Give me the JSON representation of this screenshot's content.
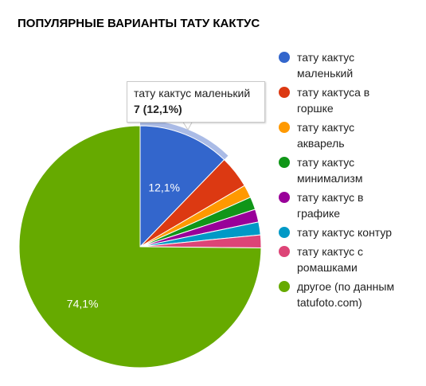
{
  "title": "ПОПУЛЯРНЫЕ ВАРИАНТЫ ТАТУ КАКТУС",
  "chart_data": {
    "type": "pie",
    "legend_position": "right",
    "slices": [
      {
        "label": "тату кактус маленький",
        "value": 7,
        "percent": 12.1,
        "color": "#3366cc",
        "label_text": "12,1%"
      },
      {
        "label": "тату кактуса в горшке",
        "percent": 4.3,
        "color": "#dc3912"
      },
      {
        "label": "тату кактус акварель",
        "percent": 1.7,
        "color": "#ff9900"
      },
      {
        "label": "тату кактус минимализм",
        "percent": 1.7,
        "color": "#109618"
      },
      {
        "label": "тату кактус в графике",
        "percent": 1.7,
        "color": "#990099"
      },
      {
        "label": "тату кактус контур",
        "percent": 1.7,
        "color": "#0099c6"
      },
      {
        "label": "тату кактус с ромашками",
        "percent": 1.7,
        "color": "#dd4477"
      },
      {
        "label": "другое (по данным tatufoto.com)",
        "percent": 74.1,
        "color": "#66aa00",
        "label_text": "74,1%"
      }
    ],
    "tooltip": {
      "label": "тату кактус маленький",
      "value_text": "7 (12,1%)"
    },
    "legend_lines": [
      [
        "тату кактус",
        "маленький"
      ],
      [
        "тату кактуса в",
        "горшке"
      ],
      [
        "тату кактус",
        "акварель"
      ],
      [
        "тату кактус",
        "минимализм"
      ],
      [
        "тату кактус в",
        "графике"
      ],
      [
        "тату кактус контур"
      ],
      [
        "тату кактус с",
        "ромашками"
      ],
      [
        "другое (по данным",
        "tatufoto.com)"
      ]
    ]
  }
}
